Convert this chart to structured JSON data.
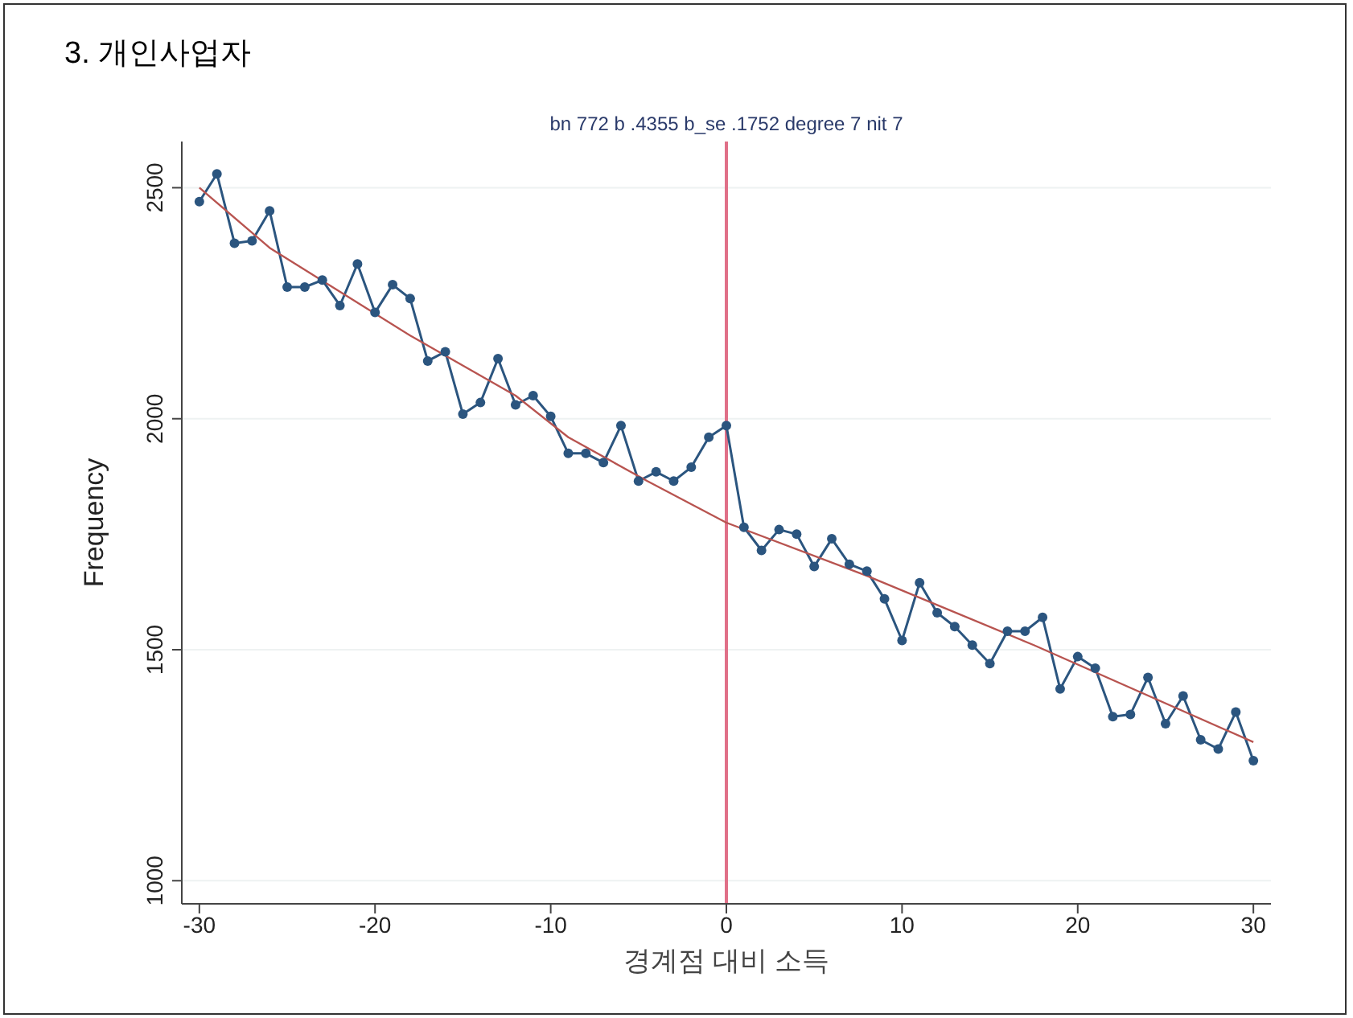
{
  "chart_data": {
    "type": "line",
    "title": "3. 개인사업자",
    "annotations": [
      "bn 772 b .4355 b_se .1752 degree 7 nit 7"
    ],
    "xlabel": "경계점 대비 소득",
    "ylabel": "Frequency",
    "xlim": [
      -31,
      31
    ],
    "xticks": [
      -30,
      -20,
      -10,
      0,
      10,
      20,
      30
    ],
    "ylim": [
      950,
      2600
    ],
    "yticks": [
      1000,
      1500,
      2000,
      2500
    ],
    "grid": "y",
    "series": [
      {
        "marker": "circle",
        "color": "#2b557f",
        "x": [
          -30,
          -29,
          -28,
          -27,
          -26,
          -25,
          -24,
          -23,
          -22,
          -21,
          -20,
          -19,
          -18,
          -17,
          -16,
          -15,
          -14,
          -13,
          -12,
          -11,
          -10,
          -9,
          -8,
          -7,
          -6,
          -5,
          -4,
          -3,
          -2,
          -1,
          0,
          1,
          2,
          3,
          4,
          5,
          6,
          7,
          8,
          9,
          10,
          11,
          12,
          13,
          14,
          15,
          16,
          17,
          18,
          19,
          20,
          21,
          22,
          23,
          24,
          25,
          26,
          27,
          28,
          29,
          30
        ],
        "values": [
          2470,
          2530,
          2380,
          2385,
          2450,
          2285,
          2285,
          2300,
          2245,
          2335,
          2230,
          2290,
          2260,
          2125,
          2145,
          2010,
          2035,
          2130,
          2030,
          2050,
          2005,
          1925,
          1925,
          1905,
          1985,
          1865,
          1885,
          1865,
          1895,
          1960,
          1985,
          1765,
          1715,
          1760,
          1750,
          1680,
          1740,
          1685,
          1670,
          1610,
          1520,
          1645,
          1580,
          1550,
          1510,
          1470,
          1540,
          1540,
          1570,
          1415,
          1485,
          1460,
          1355,
          1360,
          1440,
          1340,
          1400,
          1305,
          1285,
          1365,
          1260
        ]
      },
      {
        "marker": "none",
        "color": "#b85450",
        "x": [
          -30,
          -26,
          -22,
          -18,
          -12,
          -9,
          -4.5,
          0,
          8,
          17.5,
          30
        ],
        "values": [
          2500,
          2370,
          2275,
          2180,
          2050,
          1960,
          1865,
          1775,
          1660,
          1510,
          1300
        ]
      }
    ],
    "ref_lines": [
      {
        "axis": "x",
        "value": 0,
        "color": "#e07088"
      }
    ]
  }
}
